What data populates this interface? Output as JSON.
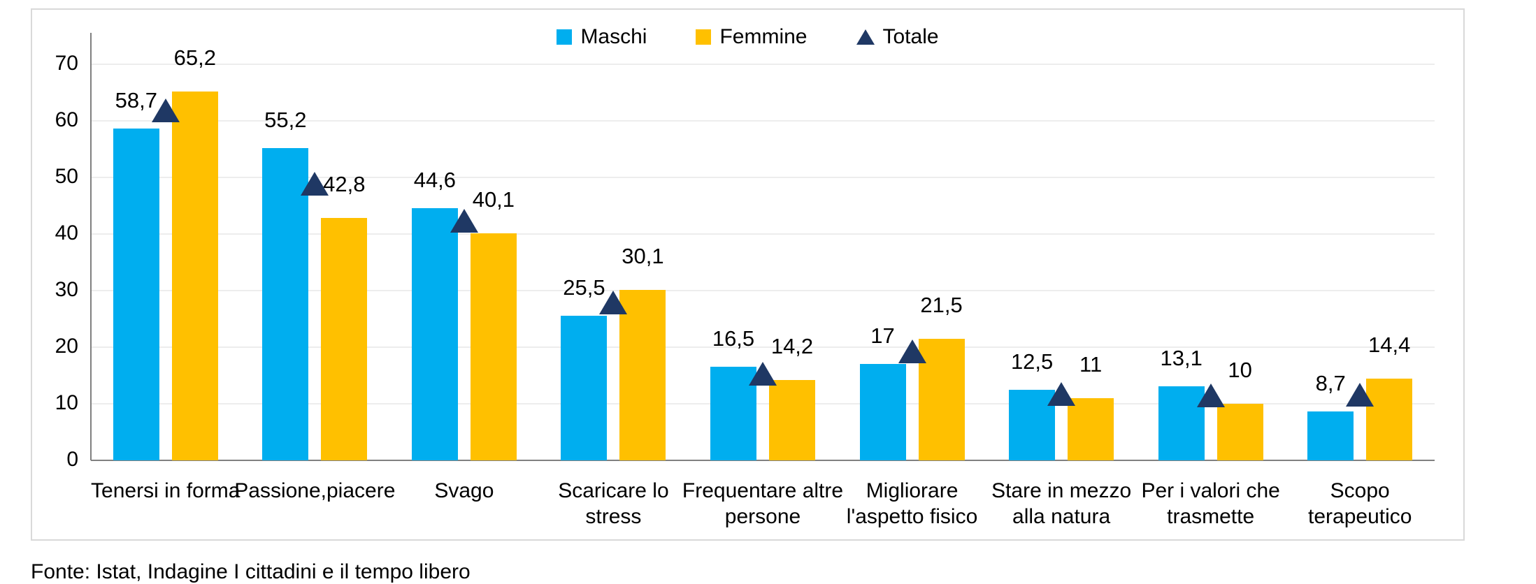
{
  "chart_data": {
    "type": "bar",
    "title": "",
    "xlabel": "",
    "ylabel": "",
    "ylim": [
      0,
      70
    ],
    "yticks": [
      0,
      10,
      20,
      30,
      40,
      50,
      60,
      70
    ],
    "grid": "horizontal",
    "legend_position": "top-center",
    "categories": [
      "Tenersi in forma",
      "Passione,piacere",
      "Svago",
      "Scaricare lo stress",
      "Frequentare altre persone",
      "Migliorare l'aspetto fisico",
      "Stare in mezzo alla natura",
      "Per i valori che trasmette",
      "Scopo terapeutico"
    ],
    "series": [
      {
        "name": "Maschi",
        "type": "bar",
        "color": "#00AEEF",
        "values": [
          58.7,
          55.2,
          44.6,
          25.5,
          16.5,
          17,
          12.5,
          13.1,
          8.7
        ],
        "labels": [
          "58,7",
          "55,2",
          "44,6",
          "25,5",
          "16,5",
          "17",
          "12,5",
          "13,1",
          "8,7"
        ]
      },
      {
        "name": "Femmine",
        "type": "bar",
        "color": "#FFC000",
        "values": [
          65.2,
          42.8,
          40.1,
          30.1,
          14.2,
          21.5,
          11,
          10,
          14.4
        ],
        "labels": [
          "65,2",
          "42,8",
          "40,1",
          "30,1",
          "14,2",
          "21,5",
          "11",
          "10",
          "14,4"
        ]
      },
      {
        "name": "Totale",
        "type": "scatter",
        "marker": "triangle",
        "color": "#1F3864",
        "values": [
          61.9,
          48.9,
          42.3,
          27.9,
          15.3,
          19.3,
          11.7,
          11.5,
          11.6
        ],
        "labels": []
      }
    ]
  },
  "colors": {
    "maschi": "#00AEEF",
    "femmine": "#FFC000",
    "totale": "#1F3864",
    "gridline": "#EDEDED",
    "axis": "#808080",
    "chart_border": "#D9D9D9",
    "text": "#000000"
  },
  "footer": {
    "source_text": "Fonte: Istat, Indagine I cittadini e il tempo libero"
  }
}
